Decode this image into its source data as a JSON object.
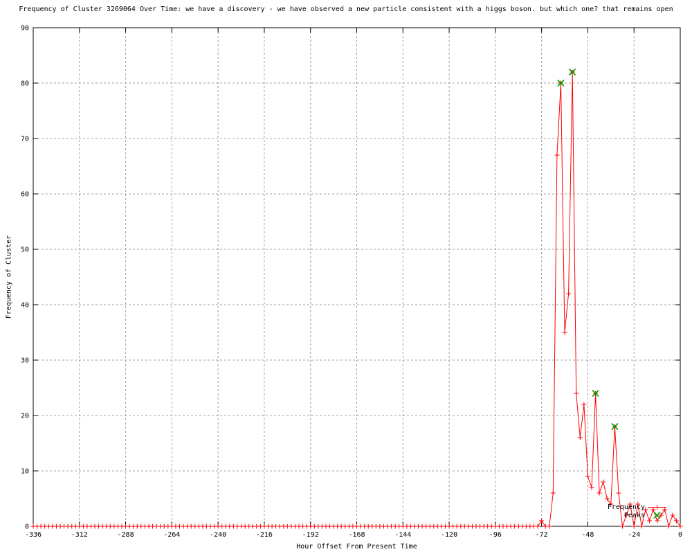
{
  "chart_data": {
    "type": "line",
    "title": "Frequency of Cluster 3269064 Over Time: we have a discovery - we have observed a new particle consistent with a higgs boson. but which one? that remains open",
    "xlabel": "Hour Offset From Present Time",
    "ylabel": "Frequency of Cluster",
    "xlim": [
      -336,
      0
    ],
    "ylim": [
      0,
      90
    ],
    "xtick_step": 24,
    "ytick_step": 10,
    "xticks": [
      -336,
      -312,
      -288,
      -264,
      -240,
      -216,
      -192,
      -168,
      -144,
      -120,
      -96,
      -72,
      -48,
      -24,
      0
    ],
    "yticks": [
      0,
      10,
      20,
      30,
      40,
      50,
      60,
      70,
      80,
      90
    ],
    "grid": true,
    "grid_color": "#a0a0a0",
    "axis_color": "#000000",
    "background_color": "#ffffff",
    "legend_position": "inside-bottom-right",
    "series": [
      {
        "name": "Frequency",
        "style": "linespoints",
        "color": "#ff0000",
        "marker": "plus",
        "x_start": -336,
        "x_step": 2,
        "values": [
          0,
          0,
          0,
          0,
          0,
          0,
          0,
          0,
          0,
          0,
          0,
          0,
          0,
          0,
          0,
          0,
          0,
          0,
          0,
          0,
          0,
          0,
          0,
          0,
          0,
          0,
          0,
          0,
          0,
          0,
          0,
          0,
          0,
          0,
          0,
          0,
          0,
          0,
          0,
          0,
          0,
          0,
          0,
          0,
          0,
          0,
          0,
          0,
          0,
          0,
          0,
          0,
          0,
          0,
          0,
          0,
          0,
          0,
          0,
          0,
          0,
          0,
          0,
          0,
          0,
          0,
          0,
          0,
          0,
          0,
          0,
          0,
          0,
          0,
          0,
          0,
          0,
          0,
          0,
          0,
          0,
          0,
          0,
          0,
          0,
          0,
          0,
          0,
          0,
          0,
          0,
          0,
          0,
          0,
          0,
          0,
          0,
          0,
          0,
          0,
          0,
          0,
          0,
          0,
          0,
          0,
          0,
          0,
          0,
          0,
          0,
          0,
          0,
          0,
          0,
          0,
          0,
          0,
          0,
          0,
          0,
          0,
          0,
          0,
          0,
          0,
          0,
          0,
          0,
          0,
          0,
          0,
          1,
          0,
          0,
          6,
          67,
          80,
          35,
          42,
          82,
          24,
          16,
          22,
          9,
          7,
          24,
          6,
          8,
          5,
          4,
          18,
          6,
          0,
          2,
          4,
          0,
          4,
          0,
          3,
          1,
          3,
          1,
          2,
          3,
          0,
          2,
          1,
          0
        ]
      },
      {
        "name": "Peaks",
        "style": "points",
        "color": "#00a000",
        "marker": "cross",
        "x": [
          -62,
          -56,
          -44,
          -34
        ],
        "y": [
          80,
          82,
          24,
          18
        ]
      }
    ]
  }
}
